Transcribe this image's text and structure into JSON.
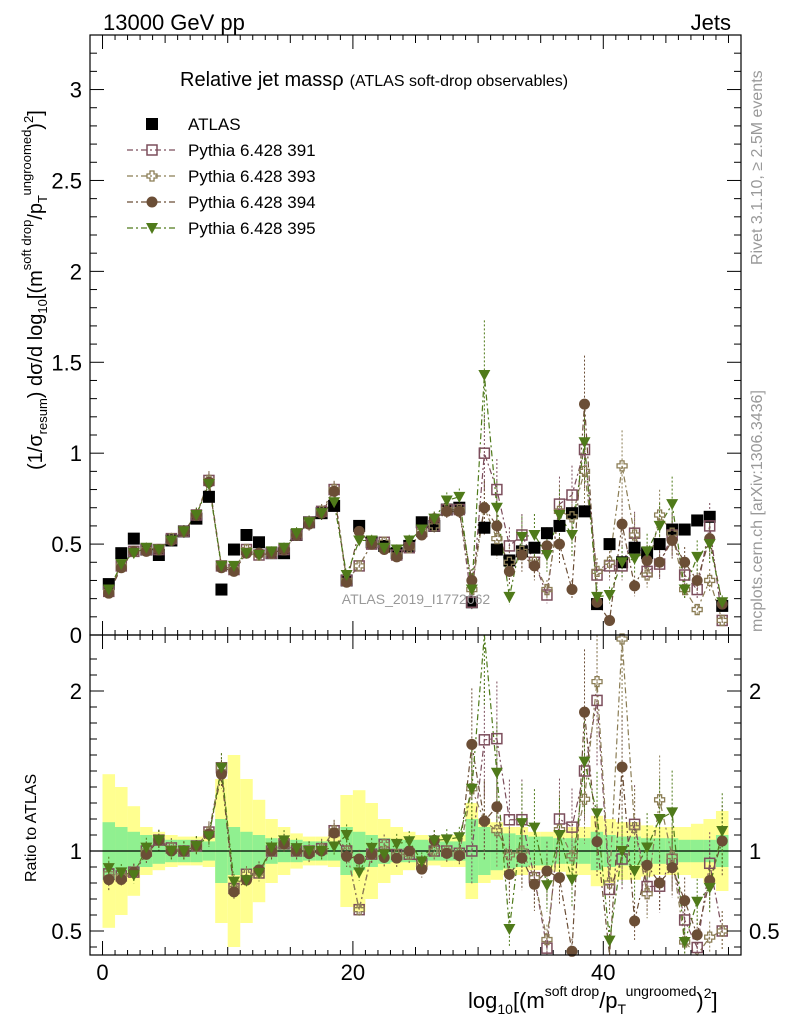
{
  "header": {
    "left": "13000 GeV pp",
    "right": "Jets"
  },
  "side_labels": {
    "rivet": "Rivet 3.1.10, ≥ 2.5M events",
    "mcplots": "mcplots.cern.ch [arXiv:1306.3436]"
  },
  "main_title": {
    "text": "Relative jet mass",
    "symbol": "ρ",
    "sub": "(ATLAS soft-drop observables)"
  },
  "watermark": "ATLAS_2019_I1772062",
  "ratio_label": "Ratio to ATLAS",
  "ylabel_parts": [
    "(1/σ",
    "resum",
    ") dσ/d log",
    "10",
    "[(m",
    "soft drop",
    "/p",
    "T",
    "ungroomed",
    ")",
    "2",
    "]"
  ],
  "xlabel_parts": [
    "log",
    "10",
    "[(m",
    "soft drop",
    "/p",
    "T",
    "ungroomed",
    ")",
    "2",
    "]"
  ],
  "chart_data": {
    "type": "scatter",
    "x": [
      0.5,
      1.5,
      2.5,
      3.5,
      4.5,
      5.5,
      6.5,
      7.5,
      8.5,
      9.5,
      10.5,
      11.5,
      12.5,
      13.5,
      14.5,
      15.5,
      16.5,
      17.5,
      18.5,
      19.5,
      20.5,
      21.5,
      22.5,
      23.5,
      24.5,
      25.5,
      26.5,
      27.5,
      28.5,
      29.5,
      30.5,
      31.5,
      32.5,
      33.5,
      34.5,
      35.5,
      36.5,
      37.5,
      38.5,
      39.5,
      40.5,
      41.5,
      42.5,
      43.5,
      44.5,
      45.5,
      46.5,
      47.5,
      48.5,
      49.5
    ],
    "xlim": [
      -1,
      51
    ],
    "ylim": [
      0,
      3.3
    ],
    "ratio_ylim": [
      0.35,
      2.35
    ],
    "x_ticks": [
      0,
      20,
      40
    ],
    "y_ticks": [
      0,
      0.5,
      1,
      1.5,
      2,
      2.5,
      3
    ],
    "ratio_ticks": [
      0.5,
      1,
      2
    ],
    "series": [
      {
        "name": "ATLAS",
        "color": "#000000",
        "marker": "square-filled",
        "values": [
          0.28,
          0.45,
          0.53,
          0.47,
          0.44,
          0.52,
          0.57,
          0.64,
          0.76,
          0.25,
          0.47,
          0.55,
          0.51,
          0.45,
          0.45,
          0.55,
          0.62,
          0.67,
          0.71,
          0.3,
          0.6,
          0.51,
          0.49,
          0.45,
          0.49,
          0.62,
          0.6,
          0.69,
          0.7,
          0.18,
          0.59,
          0.47,
          0.41,
          0.46,
          0.48,
          0.56,
          0.6,
          0.67,
          0.68,
          0.17,
          0.5,
          0.4,
          0.48,
          0.45,
          0.5,
          0.58,
          0.58,
          0.63,
          0.65,
          0.16
        ]
      },
      {
        "name": "Pythia 6.428 391",
        "color": "#7c4e5c",
        "marker": "square-open",
        "values": [
          0.24,
          0.38,
          0.46,
          0.47,
          0.47,
          0.53,
          0.57,
          0.66,
          0.85,
          0.38,
          0.36,
          0.47,
          0.44,
          0.45,
          0.47,
          0.55,
          0.62,
          0.68,
          0.8,
          0.3,
          0.38,
          0.5,
          0.51,
          0.44,
          0.48,
          0.57,
          0.6,
          0.69,
          0.69,
          0.18,
          1.0,
          0.8,
          0.49,
          0.55,
          0.4,
          0.22,
          0.72,
          0.77,
          1.02,
          0.33,
          0.38,
          0.38,
          0.56,
          0.35,
          0.39,
          0.55,
          0.33,
          0.25,
          0.6,
          0.08
        ]
      },
      {
        "name": "Pythia 6.428 393",
        "color": "#8b7d55",
        "marker": "cross-open",
        "values": [
          0.24,
          0.38,
          0.46,
          0.47,
          0.47,
          0.53,
          0.57,
          0.66,
          0.85,
          0.38,
          0.36,
          0.47,
          0.44,
          0.45,
          0.47,
          0.55,
          0.62,
          0.68,
          0.8,
          0.3,
          0.38,
          0.5,
          0.51,
          0.44,
          0.48,
          0.57,
          0.6,
          0.69,
          0.69,
          0.25,
          0.7,
          0.53,
          0.4,
          0.46,
          0.4,
          0.25,
          0.68,
          0.65,
          0.9,
          0.35,
          0.4,
          0.93,
          0.55,
          0.33,
          0.66,
          0.56,
          0.25,
          0.14,
          0.3,
          0.08
        ]
      },
      {
        "name": "Pythia 6.428 394",
        "color": "#6b4e36",
        "marker": "circle-filled",
        "values": [
          0.23,
          0.37,
          0.46,
          0.46,
          0.47,
          0.52,
          0.57,
          0.66,
          0.84,
          0.37,
          0.35,
          0.45,
          0.45,
          0.45,
          0.47,
          0.55,
          0.61,
          0.67,
          0.79,
          0.29,
          0.57,
          0.5,
          0.47,
          0.43,
          0.49,
          0.55,
          0.64,
          0.68,
          0.68,
          0.3,
          0.7,
          0.6,
          0.35,
          0.44,
          0.38,
          0.49,
          0.5,
          0.25,
          1.27,
          0.18,
          0.08,
          0.61,
          0.27,
          0.41,
          0.4,
          0.52,
          0.4,
          0.3,
          0.53,
          0.17
        ]
      },
      {
        "name": "Pythia 6.428 395",
        "color": "#4f7a1a",
        "marker": "triangle-down-filled",
        "values": [
          0.25,
          0.39,
          0.45,
          0.48,
          0.47,
          0.52,
          0.57,
          0.66,
          0.83,
          0.38,
          0.38,
          0.45,
          0.44,
          0.46,
          0.48,
          0.56,
          0.62,
          0.67,
          0.73,
          0.33,
          0.52,
          0.52,
          0.48,
          0.47,
          0.52,
          0.58,
          0.64,
          0.74,
          0.76,
          0.25,
          1.43,
          0.7,
          0.21,
          0.54,
          0.55,
          0.44,
          0.66,
          0.55,
          1.06,
          0.21,
          0.22,
          0.4,
          0.42,
          0.46,
          0.6,
          0.72,
          0.25,
          0.43,
          0.5,
          0.18
        ]
      }
    ],
    "band_inner": [
      0.18,
      0.15,
      0.12,
      0.1,
      0.08,
      0.07,
      0.07,
      0.07,
      0.06,
      0.2,
      0.15,
      0.12,
      0.1,
      0.08,
      0.07,
      0.07,
      0.06,
      0.06,
      0.06,
      0.15,
      0.12,
      0.1,
      0.08,
      0.07,
      0.07,
      0.07,
      0.06,
      0.06,
      0.06,
      0.2,
      0.15,
      0.12,
      0.11,
      0.1,
      0.09,
      0.09,
      0.08,
      0.08,
      0.08,
      0.12,
      0.1,
      0.09,
      0.09,
      0.08,
      0.08,
      0.08,
      0.07,
      0.07,
      0.07,
      0.1
    ],
    "band_outer": [
      0.48,
      0.4,
      0.28,
      0.15,
      0.12,
      0.1,
      0.09,
      0.09,
      0.1,
      0.45,
      0.6,
      0.45,
      0.32,
      0.2,
      0.15,
      0.11,
      0.09,
      0.09,
      0.1,
      0.35,
      0.38,
      0.3,
      0.2,
      0.15,
      0.12,
      0.1,
      0.09,
      0.1,
      0.1,
      0.3,
      0.2,
      0.18,
      0.15,
      0.15,
      0.12,
      0.12,
      0.13,
      0.15,
      0.15,
      0.22,
      0.2,
      0.18,
      0.18,
      0.16,
      0.15,
      0.15,
      0.15,
      0.17,
      0.2,
      0.25
    ],
    "colors": {
      "band_inner": "#90f090",
      "band_outer": "#ffff90"
    }
  }
}
